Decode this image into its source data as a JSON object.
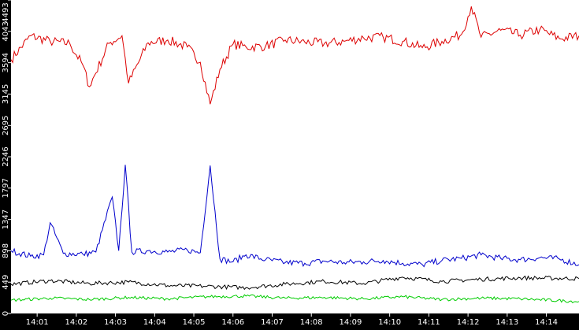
{
  "chart_data": {
    "type": "line",
    "title": "",
    "xlabel": "",
    "ylabel": "",
    "ylim": [
      0,
      4493
    ],
    "xlim": [
      "14:00:20",
      "14:14:50"
    ],
    "grid": false,
    "legend": "none",
    "y_ticks": [
      0,
      449,
      898,
      1347,
      1797,
      2246,
      2695,
      3145,
      3594,
      4043,
      4493
    ],
    "x_ticks": [
      "14:01",
      "14:02",
      "14:03",
      "14:04",
      "14:05",
      "14:06",
      "14:07",
      "14:08",
      "14:09",
      "14:10",
      "14:11",
      "14:12",
      "14:13",
      "14:14"
    ],
    "colors": {
      "background": "#000000",
      "plot": "#ffffff",
      "text": "#ffffff",
      "red": "#dd0000",
      "blue": "#0000cc",
      "black": "#000000",
      "green": "#00cc00"
    },
    "series": [
      {
        "color": "#dd0000",
        "x": [
          "14:00:20",
          "14:00:50",
          "14:01:20",
          "14:01:50",
          "14:02:10",
          "14:02:20",
          "14:02:50",
          "14:03:10",
          "14:03:20",
          "14:03:50",
          "14:04:20",
          "14:04:50",
          "14:05:10",
          "14:05:25",
          "14:05:40",
          "14:06:00",
          "14:06:20",
          "14:06:50",
          "14:07:20",
          "14:07:50",
          "14:08:20",
          "14:08:50",
          "14:09:20",
          "14:09:50",
          "14:10:20",
          "14:10:50",
          "14:11:20",
          "14:11:50",
          "14:12:05",
          "14:12:20",
          "14:12:50",
          "14:13:20",
          "14:13:50",
          "14:14:20",
          "14:14:50"
        ],
        "values": [
          3640,
          3980,
          3900,
          3870,
          3560,
          3250,
          3870,
          3980,
          3300,
          3880,
          3920,
          3820,
          3600,
          3000,
          3500,
          3860,
          3820,
          3830,
          3920,
          3890,
          3870,
          3900,
          3950,
          3960,
          3900,
          3810,
          3900,
          4000,
          4400,
          3960,
          4060,
          3990,
          4070,
          3940,
          3980
        ]
      },
      {
        "color": "#0000cc",
        "x": [
          "14:00:20",
          "14:00:50",
          "14:01:10",
          "14:01:20",
          "14:01:40",
          "14:02:10",
          "14:02:30",
          "14:02:55",
          "14:03:05",
          "14:03:15",
          "14:03:25",
          "14:03:50",
          "14:04:20",
          "14:04:50",
          "14:05:10",
          "14:05:25",
          "14:05:40",
          "14:06:00",
          "14:06:20",
          "14:06:50",
          "14:07:20",
          "14:07:50",
          "14:08:20",
          "14:08:50",
          "14:09:20",
          "14:09:50",
          "14:10:20",
          "14:10:50",
          "14:11:20",
          "14:11:50",
          "14:12:20",
          "14:12:50",
          "14:13:20",
          "14:13:50",
          "14:14:20",
          "14:14:50"
        ],
        "values": [
          900,
          820,
          840,
          1300,
          860,
          850,
          880,
          1670,
          900,
          2130,
          880,
          900,
          880,
          910,
          870,
          2120,
          780,
          740,
          840,
          770,
          730,
          720,
          750,
          730,
          740,
          760,
          720,
          700,
          760,
          790,
          840,
          790,
          770,
          800,
          780,
          700
        ]
      },
      {
        "color": "#000000",
        "x": [
          "14:00:20",
          "14:01:20",
          "14:02:20",
          "14:03:20",
          "14:04:20",
          "14:05:20",
          "14:06:20",
          "14:07:20",
          "14:08:20",
          "14:09:20",
          "14:10:20",
          "14:11:20",
          "14:12:20",
          "14:13:20",
          "14:14:50"
        ],
        "values": [
          420,
          470,
          430,
          450,
          400,
          390,
          370,
          420,
          460,
          430,
          520,
          460,
          490,
          510,
          500
        ]
      },
      {
        "color": "#00cc00",
        "x": [
          "14:00:20",
          "14:01:20",
          "14:02:20",
          "14:03:20",
          "14:04:20",
          "14:05:20",
          "14:06:20",
          "14:07:20",
          "14:08:20",
          "14:09:20",
          "14:10:20",
          "14:11:20",
          "14:12:20",
          "14:13:20",
          "14:14:50"
        ],
        "values": [
          190,
          220,
          200,
          230,
          210,
          240,
          250,
          220,
          230,
          210,
          240,
          200,
          220,
          210,
          170
        ]
      }
    ]
  }
}
